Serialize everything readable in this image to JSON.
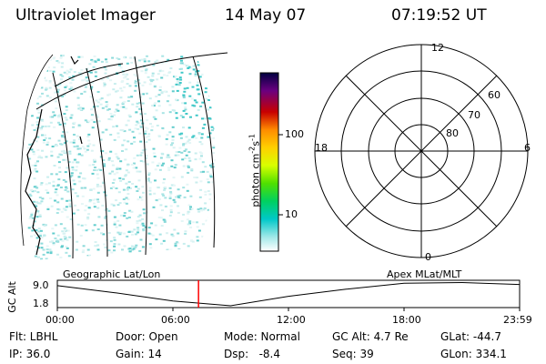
{
  "header": {
    "title": "Ultraviolet Imager",
    "date": "14 May 07",
    "time": "07:19:52 UT"
  },
  "colorbar": {
    "label": "photon cm",
    "label_exp1": "-2",
    "label_s": "s",
    "label_exp2": "-1",
    "ticks": [
      "100",
      "10"
    ],
    "colors": [
      "#000040",
      "#3d0060",
      "#6a0080",
      "#9a0040",
      "#c80000",
      "#e84000",
      "#ff9800",
      "#ffd000",
      "#d8ff00",
      "#70e000",
      "#00d060",
      "#00c8c8",
      "#a0e8e8",
      "#ffffff"
    ]
  },
  "polar": {
    "mlt_labels": {
      "top": "12",
      "left": "18",
      "right": "6",
      "bottom": "0"
    },
    "lat_labels": [
      "60",
      "70",
      "80"
    ]
  },
  "timeline": {
    "left_label": "Geographic Lat/Lon",
    "right_label": "Apex MLat/MLT",
    "axis_label": "GC Alt",
    "y_max": "9.0",
    "y_min": "1.8",
    "x_ticks": [
      "00:00",
      "06:00",
      "12:00",
      "18:00",
      "23:59"
    ],
    "current_time_hours": 7.33,
    "marker_color": "#ff0000"
  },
  "info": {
    "flt": "Flt: LBHL",
    "ip": "IP: 36.0",
    "door": "Door: Open",
    "gain": "Gain: 14",
    "mode": "Mode: Normal",
    "dsp": "Dsp:   -8.4",
    "gcalt": "GC Alt: 4.7 Re",
    "seq": "Seq: 39",
    "glat": "GLat: -44.7",
    "glon": "GLon: 334.1"
  }
}
